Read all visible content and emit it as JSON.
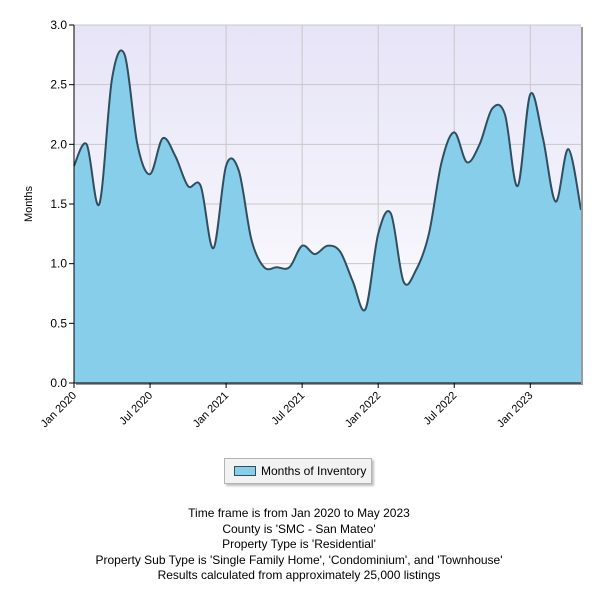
{
  "chart_data": {
    "type": "area",
    "ylabel": "Months",
    "ylim": [
      0,
      3.0
    ],
    "yticks": [
      "0.0",
      "0.5",
      "1.0",
      "1.5",
      "2.0",
      "2.5",
      "3.0"
    ],
    "xlim": [
      "2020-01",
      "2023-05"
    ],
    "xticks": [
      {
        "label": "Jan 2020",
        "x": "2020-01"
      },
      {
        "label": "Jul 2020",
        "x": "2020-07"
      },
      {
        "label": "Jan 2021",
        "x": "2021-01"
      },
      {
        "label": "Jul 2021",
        "x": "2021-07"
      },
      {
        "label": "Jan 2022",
        "x": "2022-01"
      },
      {
        "label": "Jul 2022",
        "x": "2022-07"
      },
      {
        "label": "Jan 2023",
        "x": "2023-01"
      }
    ],
    "grid": true,
    "legend_position": "bottom-center",
    "series": [
      {
        "name": "Months of Inventory",
        "color": "#87ceeb",
        "line_color": "#2f4f5f",
        "x": [
          "2020-01",
          "2020-02",
          "2020-03",
          "2020-04",
          "2020-05",
          "2020-06",
          "2020-07",
          "2020-08",
          "2020-09",
          "2020-10",
          "2020-11",
          "2020-12",
          "2021-01",
          "2021-02",
          "2021-03",
          "2021-04",
          "2021-05",
          "2021-06",
          "2021-07",
          "2021-08",
          "2021-09",
          "2021-10",
          "2021-11",
          "2021-12",
          "2022-01",
          "2022-02",
          "2022-03",
          "2022-04",
          "2022-05",
          "2022-06",
          "2022-07",
          "2022-08",
          "2022-09",
          "2022-10",
          "2022-11",
          "2022-12",
          "2023-01",
          "2023-02",
          "2023-03",
          "2023-04",
          "2023-05"
        ],
        "values": [
          1.82,
          2.0,
          1.5,
          2.55,
          2.75,
          2.0,
          1.75,
          2.05,
          1.9,
          1.65,
          1.65,
          1.13,
          1.82,
          1.78,
          1.2,
          0.97,
          0.97,
          0.97,
          1.15,
          1.08,
          1.15,
          1.1,
          0.85,
          0.62,
          1.25,
          1.42,
          0.85,
          0.95,
          1.25,
          1.85,
          2.1,
          1.85,
          2.0,
          2.3,
          2.25,
          1.65,
          2.42,
          2.05,
          1.52,
          1.96,
          1.45
        ]
      }
    ]
  },
  "legend": {
    "label": "Months of Inventory"
  },
  "captions": [
    "Time frame is from Jan 2020 to May 2023",
    "County is 'SMC - San Mateo'",
    "Property Type is 'Residential'",
    "Property Sub Type is 'Single Family Home', 'Condominium', and 'Townhouse'",
    "Results calculated from approximately 25,000 listings"
  ]
}
